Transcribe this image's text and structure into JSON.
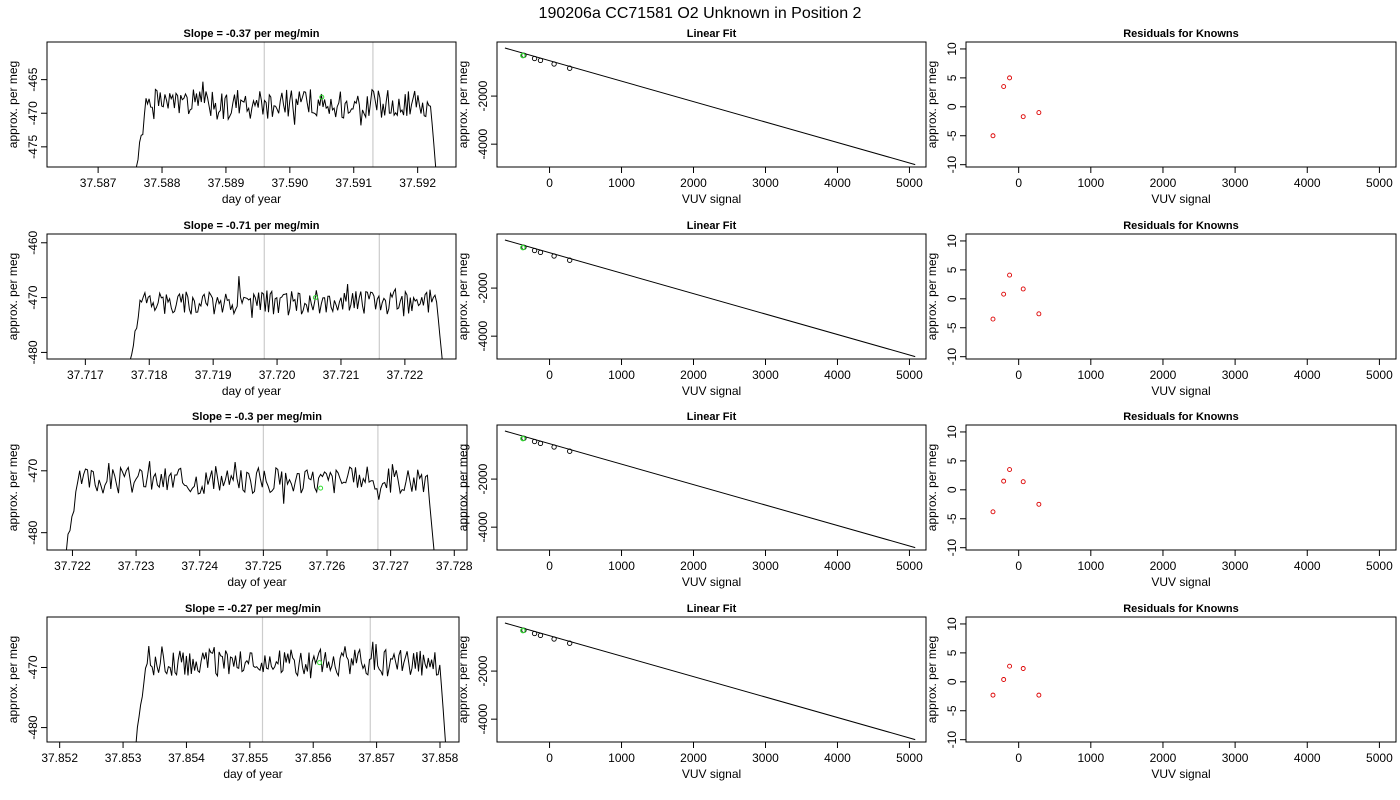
{
  "figure_title": "190206a      CC71581   O2 Unknown in Position  2",
  "colors": {
    "trace": "#000000",
    "vline": "#cccccc",
    "unknown": "#33dd33",
    "residual": "#dd0000",
    "frame": "#000000"
  },
  "chart_data": [
    {
      "type": "line",
      "title": "Slope =  -0.37  per meg/min",
      "xlabel": "day of year",
      "ylabel": "approx. per meg",
      "xlim": [
        37.5862,
        37.5926
      ],
      "ylim": [
        -478,
        -459.4
      ],
      "xticks": [
        "37.587",
        "37.588",
        "37.589",
        "37.590",
        "37.591",
        "37.592"
      ],
      "yticks": [
        -465,
        -470,
        -475
      ],
      "x_start": 37.5876,
      "x_end": 37.5923,
      "level": -468.7,
      "drop_y": -478,
      "seed": 1,
      "vlines": [
        37.5896,
        37.5913
      ],
      "unknown_point": {
        "x": 37.5905,
        "y": -467.6
      }
    },
    {
      "type": "line",
      "title": "Slope =  -0.71  per meg/min",
      "xlabel": "day of year",
      "ylabel": "approx. per meg",
      "xlim": [
        37.7164,
        37.7228
      ],
      "ylim": [
        -481.2,
        -458.4
      ],
      "xticks": [
        "37.717",
        "37.718",
        "37.719",
        "37.720",
        "37.721",
        "37.722"
      ],
      "yticks": [
        -460,
        -470,
        -480
      ],
      "x_start": 37.7177,
      "x_end": 37.7226,
      "level": -470.8,
      "drop_y": -481.2,
      "seed": 2,
      "vlines": [
        37.7198,
        37.7216
      ],
      "unknown_point": {
        "x": 37.7206,
        "y": -470.0
      }
    },
    {
      "type": "line",
      "title": "Slope =  -0.3  per meg/min",
      "xlabel": "day of year",
      "ylabel": "approx. per meg",
      "xlim": [
        37.7216,
        37.7282
      ],
      "ylim": [
        -482.8,
        -462.6
      ],
      "xticks": [
        "37.722",
        "37.723",
        "37.724",
        "37.725",
        "37.726",
        "37.727",
        "37.728"
      ],
      "yticks": [
        -470,
        -480
      ],
      "x_start": 37.7219,
      "x_end": 37.7277,
      "level": -471.5,
      "drop_y": -482.8,
      "seed": 3,
      "vlines": [
        37.725,
        37.7268
      ],
      "unknown_point": {
        "x": 37.7259,
        "y": -472.8
      }
    },
    {
      "type": "line",
      "title": "Slope =  -0.27  per meg/min",
      "xlabel": "day of year",
      "ylabel": "approx. per meg",
      "xlim": [
        37.8518,
        37.8583
      ],
      "ylim": [
        -482.4,
        -461.6
      ],
      "xticks": [
        "37.852",
        "37.853",
        "37.854",
        "37.855",
        "37.856",
        "37.857",
        "37.858"
      ],
      "yticks": [
        -470,
        -480
      ],
      "x_start": 37.8532,
      "x_end": 37.8581,
      "level": -469.2,
      "drop_y": -482.4,
      "seed": 4,
      "vlines": [
        37.8552,
        37.8569
      ],
      "unknown_point": {
        "x": 37.8561,
        "y": -469.2
      }
    },
    {
      "type": "scatter",
      "title": "Linear Fit",
      "xlabel": "VUV signal",
      "ylabel": "approx. per meg",
      "xlim": [
        -730,
        5230
      ],
      "ylim": [
        -4950,
        250
      ],
      "xticks": [
        0,
        1000,
        2000,
        3000,
        4000,
        5000
      ],
      "yticks": [
        -2000,
        -4000
      ],
      "fit_line": {
        "x": [
          -620,
          5080
        ],
        "y": [
          0,
          -4850
        ]
      },
      "known_points": [
        {
          "x": -356,
          "y": -302
        },
        {
          "x": -208,
          "y": -437
        },
        {
          "x": -126,
          "y": -515
        },
        {
          "x": 63,
          "y": -666
        },
        {
          "x": 280,
          "y": -840
        }
      ],
      "unknown_point": {
        "x": -370,
        "y": -315
      }
    },
    {
      "type": "scatter",
      "title": "Linear Fit",
      "xlabel": "VUV signal",
      "ylabel": "approx. per meg",
      "xlim": [
        -730,
        5230
      ],
      "ylim": [
        -4950,
        250
      ],
      "xticks": [
        0,
        1000,
        2000,
        3000,
        4000,
        5000
      ],
      "yticks": [
        -2000,
        -4000
      ],
      "fit_line": {
        "x": [
          -620,
          5080
        ],
        "y": [
          0,
          -4850
        ]
      },
      "known_points": [
        {
          "x": -356,
          "y": -302
        },
        {
          "x": -208,
          "y": -437
        },
        {
          "x": -126,
          "y": -515
        },
        {
          "x": 63,
          "y": -666
        },
        {
          "x": 280,
          "y": -840
        }
      ],
      "unknown_point": {
        "x": -370,
        "y": -315
      }
    },
    {
      "type": "scatter",
      "title": "Linear Fit",
      "xlabel": "VUV signal",
      "ylabel": "approx. per meg",
      "xlim": [
        -730,
        5230
      ],
      "ylim": [
        -4950,
        250
      ],
      "xticks": [
        0,
        1000,
        2000,
        3000,
        4000,
        5000
      ],
      "yticks": [
        -2000,
        -4000
      ],
      "fit_line": {
        "x": [
          -620,
          5080
        ],
        "y": [
          0,
          -4850
        ]
      },
      "known_points": [
        {
          "x": -356,
          "y": -302
        },
        {
          "x": -208,
          "y": -437
        },
        {
          "x": -126,
          "y": -515
        },
        {
          "x": 63,
          "y": -666
        },
        {
          "x": 280,
          "y": -840
        }
      ],
      "unknown_point": {
        "x": -370,
        "y": -315
      }
    },
    {
      "type": "scatter",
      "title": "Linear Fit",
      "xlabel": "VUV signal",
      "ylabel": "approx. per meg",
      "xlim": [
        -730,
        5230
      ],
      "ylim": [
        -4950,
        250
      ],
      "xticks": [
        0,
        1000,
        2000,
        3000,
        4000,
        5000
      ],
      "yticks": [
        -2000,
        -4000
      ],
      "fit_line": {
        "x": [
          -620,
          5080
        ],
        "y": [
          0,
          -4850
        ]
      },
      "known_points": [
        {
          "x": -356,
          "y": -302
        },
        {
          "x": -208,
          "y": -437
        },
        {
          "x": -126,
          "y": -515
        },
        {
          "x": 63,
          "y": -666
        },
        {
          "x": 280,
          "y": -840
        }
      ],
      "unknown_point": {
        "x": -370,
        "y": -315
      }
    },
    {
      "type": "scatter",
      "title": "Residuals for Knowns",
      "xlabel": "VUV signal",
      "ylabel": "approx. per meg",
      "xlim": [
        -730,
        5230
      ],
      "ylim": [
        -10.4,
        11.2
      ],
      "xticks": [
        0,
        1000,
        2000,
        3000,
        4000,
        5000
      ],
      "yticks": [
        10,
        5,
        0,
        -5,
        -10
      ],
      "points": [
        {
          "x": -356,
          "y": -5.0
        },
        {
          "x": -208,
          "y": 3.5
        },
        {
          "x": -126,
          "y": 5.0
        },
        {
          "x": 63,
          "y": -1.7
        },
        {
          "x": 280,
          "y": -1.0
        }
      ]
    },
    {
      "type": "scatter",
      "title": "Residuals for Knowns",
      "xlabel": "VUV signal",
      "ylabel": "approx. per meg",
      "xlim": [
        -730,
        5230
      ],
      "ylim": [
        -10.4,
        11.2
      ],
      "xticks": [
        0,
        1000,
        2000,
        3000,
        4000,
        5000
      ],
      "yticks": [
        10,
        5,
        0,
        -5,
        -10
      ],
      "points": [
        {
          "x": -356,
          "y": -3.5
        },
        {
          "x": -208,
          "y": 0.8
        },
        {
          "x": -126,
          "y": 4.1
        },
        {
          "x": 63,
          "y": 1.7
        },
        {
          "x": 280,
          "y": -2.6
        }
      ]
    },
    {
      "type": "scatter",
      "title": "Residuals for Knowns",
      "xlabel": "VUV signal",
      "ylabel": "approx. per meg",
      "xlim": [
        -730,
        5230
      ],
      "ylim": [
        -10.4,
        11.2
      ],
      "xticks": [
        0,
        1000,
        2000,
        3000,
        4000,
        5000
      ],
      "yticks": [
        10,
        5,
        0,
        -5,
        -10
      ],
      "points": [
        {
          "x": -356,
          "y": -3.8
        },
        {
          "x": -208,
          "y": 1.5
        },
        {
          "x": -126,
          "y": 3.5
        },
        {
          "x": 63,
          "y": 1.4
        },
        {
          "x": 280,
          "y": -2.5
        }
      ]
    },
    {
      "type": "scatter",
      "title": "Residuals for Knowns",
      "xlabel": "VUV signal",
      "ylabel": "approx. per meg",
      "xlim": [
        -730,
        5230
      ],
      "ylim": [
        -10.4,
        11.2
      ],
      "xticks": [
        0,
        1000,
        2000,
        3000,
        4000,
        5000
      ],
      "yticks": [
        10,
        5,
        0,
        -5,
        -10
      ],
      "points": [
        {
          "x": -356,
          "y": -2.3
        },
        {
          "x": -208,
          "y": 0.4
        },
        {
          "x": -126,
          "y": 2.7
        },
        {
          "x": 63,
          "y": 2.3
        },
        {
          "x": 280,
          "y": -2.3
        }
      ]
    }
  ]
}
